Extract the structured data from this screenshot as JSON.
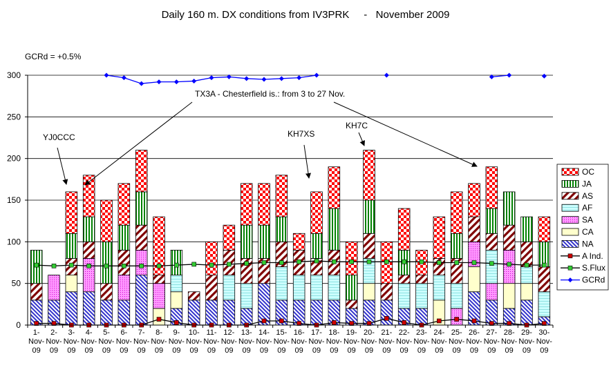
{
  "chart_data": {
    "type": "bar",
    "title": "Daily 160 m. DX conditions from IV3PRK     -   November 2009",
    "note": "GCRd = +0.5%",
    "xlabel": "",
    "ylabel": "",
    "ylim": [
      0,
      300
    ],
    "yticks": [
      "0",
      "50",
      "100",
      "150",
      "200",
      "250",
      "300"
    ],
    "categories": [
      "1-Nov-09",
      "2-Nov-09",
      "3-Nov-09",
      "4-Nov-09",
      "5-Nov-09",
      "6-Nov-09",
      "7-Nov-09",
      "8-Nov-09",
      "9-Nov-09",
      "10-Nov-09",
      "11-Nov-09",
      "12-Nov-09",
      "13-Nov-09",
      "14-Nov-09",
      "15-Nov-09",
      "16-Nov-09",
      "17-Nov-09",
      "18-Nov-09",
      "19-Nov-09",
      "20-Nov-09",
      "21-Nov-09",
      "22-Nov-09",
      "23-Nov-09",
      "24-Nov-09",
      "25-Nov-09",
      "26-Nov-09",
      "27-Nov-09",
      "28-Nov-09",
      "29-Nov-09",
      "30-Nov-09"
    ],
    "tick_lines": [
      [
        "1-",
        "Nov-",
        "09"
      ],
      [
        "2-",
        "Nov-",
        "09"
      ],
      [
        "3-",
        "Nov-",
        "09"
      ],
      [
        "4-",
        "Nov-",
        "09"
      ],
      [
        "5-",
        "Nov-",
        "09"
      ],
      [
        "6-",
        "Nov-",
        "09"
      ],
      [
        "7-",
        "Nov-",
        "09"
      ],
      [
        "8-",
        "Nov-",
        "09"
      ],
      [
        "9-",
        "Nov-",
        "09"
      ],
      [
        "10-",
        "Nov-",
        "09"
      ],
      [
        "11-",
        "Nov-",
        "09"
      ],
      [
        "12-",
        "Nov-",
        "09"
      ],
      [
        "13-",
        "Nov-",
        "09"
      ],
      [
        "14-",
        "Nov-",
        "09"
      ],
      [
        "15-",
        "Nov-",
        "09"
      ],
      [
        "16-",
        "Nov-",
        "09"
      ],
      [
        "17-",
        "Nov-",
        "09"
      ],
      [
        "18-",
        "Nov-",
        "09"
      ],
      [
        "19-",
        "Nov-",
        "09"
      ],
      [
        "20-",
        "Nov-",
        "09"
      ],
      [
        "21-",
        "Nov-",
        "09"
      ],
      [
        "22-",
        "Nov-",
        "09"
      ],
      [
        "23-",
        "Nov-",
        "09"
      ],
      [
        "24-",
        "Nov-",
        "09"
      ],
      [
        "25-",
        "Nov-",
        "09"
      ],
      [
        "26-",
        "Nov-",
        "09"
      ],
      [
        "27-",
        "Nov-",
        "09"
      ],
      [
        "28-",
        "Nov-",
        "09"
      ],
      [
        "29-",
        "Nov-",
        "09"
      ],
      [
        "30-",
        "Nov-",
        "09"
      ]
    ],
    "stack_order": [
      "NA",
      "CA",
      "SA",
      "AF",
      "AS",
      "JA",
      "OC"
    ],
    "series": [
      {
        "name": "NA",
        "values": [
          30,
          30,
          40,
          40,
          30,
          30,
          60,
          0,
          20,
          30,
          30,
          30,
          20,
          50,
          30,
          30,
          30,
          30,
          20,
          30,
          30,
          20,
          20,
          0,
          0,
          40,
          30,
          20,
          30,
          10
        ]
      },
      {
        "name": "CA",
        "values": [
          0,
          0,
          20,
          0,
          0,
          0,
          0,
          20,
          20,
          0,
          0,
          0,
          0,
          0,
          0,
          0,
          0,
          0,
          0,
          20,
          0,
          0,
          0,
          30,
          0,
          30,
          0,
          30,
          20,
          0
        ]
      },
      {
        "name": "SA",
        "values": [
          0,
          30,
          0,
          40,
          0,
          30,
          30,
          30,
          0,
          0,
          0,
          0,
          0,
          0,
          0,
          0,
          0,
          0,
          0,
          0,
          0,
          0,
          0,
          0,
          20,
          30,
          20,
          40,
          0,
          0
        ]
      },
      {
        "name": "AF",
        "values": [
          0,
          0,
          0,
          0,
          0,
          0,
          0,
          0,
          20,
          0,
          0,
          30,
          30,
          0,
          40,
          30,
          30,
          30,
          0,
          30,
          0,
          30,
          30,
          30,
          30,
          0,
          40,
          0,
          20,
          30
        ]
      },
      {
        "name": "AS",
        "values": [
          20,
          0,
          20,
          20,
          20,
          30,
          30,
          10,
          0,
          10,
          30,
          30,
          30,
          30,
          30,
          30,
          20,
          30,
          10,
          30,
          20,
          10,
          10,
          20,
          30,
          30,
          20,
          30,
          30,
          30
        ]
      },
      {
        "name": "JA",
        "values": [
          40,
          0,
          30,
          30,
          50,
          30,
          40,
          0,
          30,
          0,
          0,
          0,
          40,
          40,
          30,
          0,
          30,
          50,
          30,
          40,
          0,
          30,
          0,
          0,
          30,
          0,
          30,
          40,
          30,
          30
        ]
      },
      {
        "name": "OC",
        "values": [
          0,
          0,
          50,
          50,
          50,
          50,
          50,
          70,
          0,
          0,
          40,
          30,
          50,
          50,
          50,
          20,
          50,
          50,
          40,
          60,
          50,
          50,
          30,
          50,
          50,
          40,
          50,
          0,
          0,
          30
        ]
      }
    ],
    "lines": [
      {
        "name": "A Ind.",
        "values": [
          2,
          2,
          0,
          0,
          0,
          0,
          0,
          7,
          3,
          0,
          0,
          0,
          0,
          5,
          5,
          2,
          0,
          3,
          2,
          2,
          8,
          3,
          0,
          5,
          7,
          5,
          2,
          2,
          0,
          2
        ]
      },
      {
        "name": "S.Flux",
        "values": [
          72,
          71,
          72,
          71,
          71,
          71,
          71,
          71,
          72,
          73,
          72,
          73,
          74,
          75,
          75,
          76,
          77,
          76,
          76,
          76,
          76,
          76,
          76,
          75,
          75,
          75,
          74,
          73,
          72,
          72
        ]
      },
      {
        "name": "GCRd",
        "values": [
          null,
          null,
          null,
          null,
          300,
          297,
          290,
          292,
          292,
          293,
          297,
          298,
          296,
          295,
          296,
          297,
          300,
          null,
          null,
          null,
          300,
          null,
          null,
          null,
          null,
          null,
          298,
          300,
          null,
          299
        ]
      }
    ],
    "legend": [
      "OC",
      "JA",
      "AS",
      "AF",
      "SA",
      "CA",
      "NA",
      "A Ind.",
      "S.Flux",
      "GCRd"
    ],
    "legend_position": "right",
    "annotations": [
      {
        "text": "YJ0CCC"
      },
      {
        "text": "TX3A - Chesterfield is.: from 3 to 27 Nov."
      },
      {
        "text": "KH7XS"
      },
      {
        "text": "KH7C"
      }
    ]
  }
}
